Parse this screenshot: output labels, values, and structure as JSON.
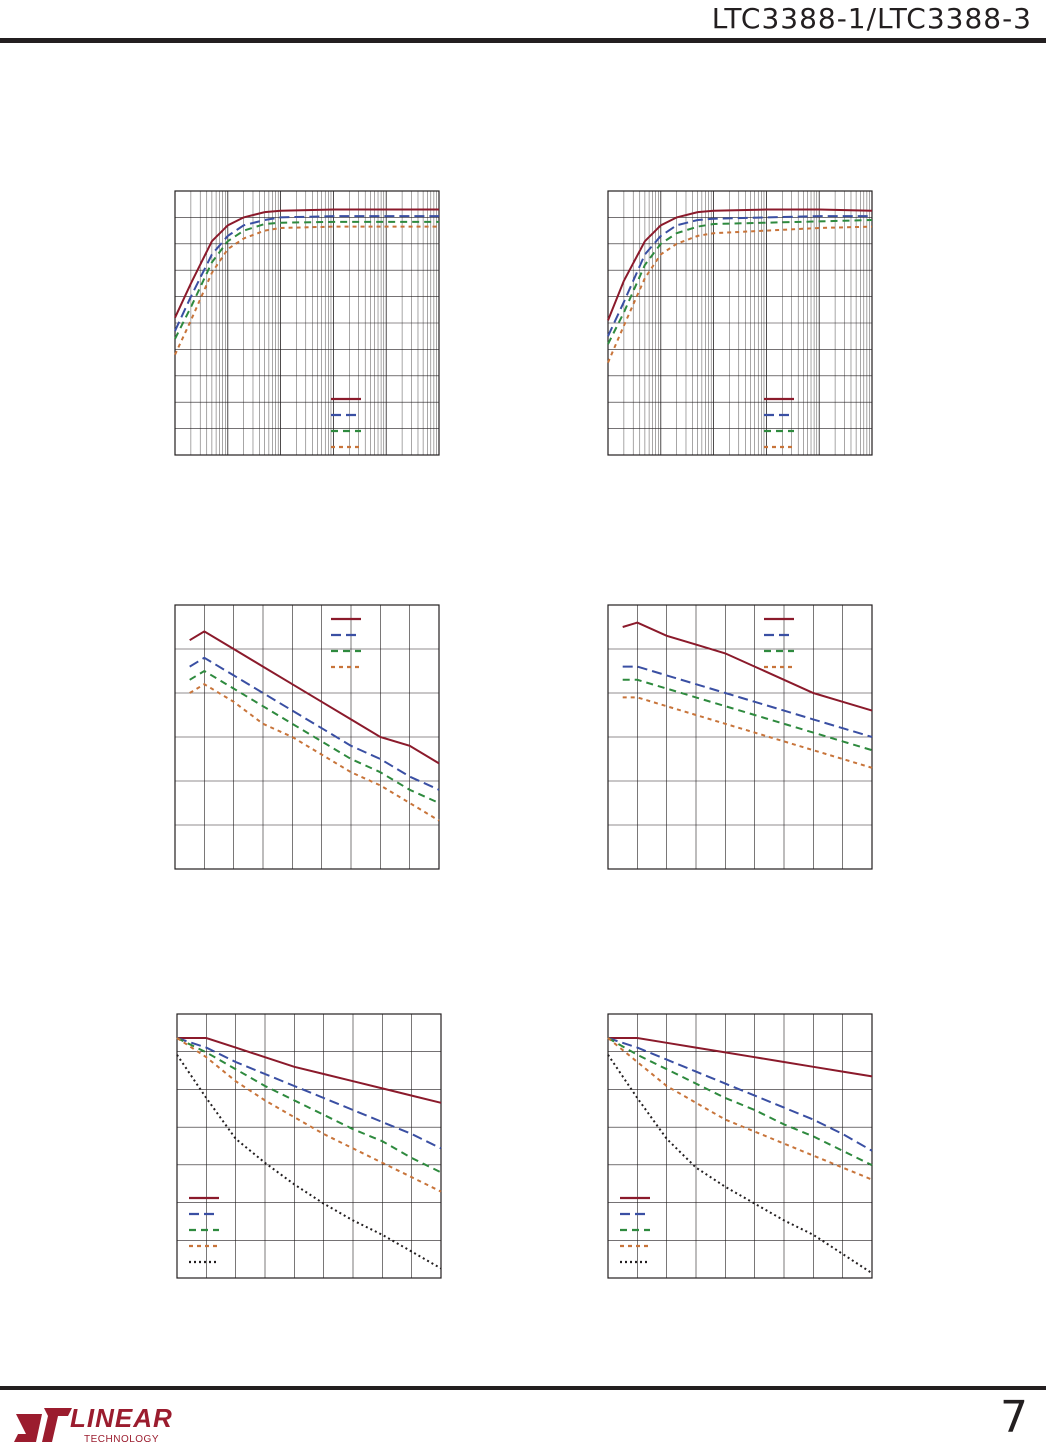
{
  "header": {
    "title": "LTC3388-1/LTC3388-3"
  },
  "footer": {
    "page_number": "7",
    "logo_word": "LINEAR",
    "logo_sub": "TECHNOLOGY"
  },
  "colors": {
    "series1": "#8b1a2b",
    "series2": "#3a4fa3",
    "series3": "#2e8a3e",
    "series4": "#c8743a",
    "series5": "#231f20",
    "grid": "#231f20"
  },
  "chart_data": [
    {
      "type": "line",
      "scale": "log-x",
      "legend": "bottom-right",
      "series": [
        {
          "x": [
            0.001,
            0.002,
            0.005,
            0.01,
            0.02,
            0.05,
            0.1,
            1,
            10,
            100
          ],
          "values": [
            52,
            65,
            81,
            87,
            90,
            92,
            92.5,
            93,
            93,
            93
          ]
        },
        {
          "x": [
            0.001,
            0.002,
            0.005,
            0.01,
            0.02,
            0.05,
            0.1,
            1,
            10,
            100
          ],
          "values": [
            47,
            60,
            76,
            83,
            87,
            89,
            90,
            90.5,
            90.5,
            90.5
          ]
        },
        {
          "x": [
            0.001,
            0.002,
            0.005,
            0.01,
            0.02,
            0.05,
            0.1,
            1,
            10,
            100
          ],
          "values": [
            44,
            56,
            73,
            81,
            85,
            87.5,
            88,
            88.3,
            88.3,
            88.3
          ]
        },
        {
          "x": [
            0.001,
            0.002,
            0.005,
            0.01,
            0.02,
            0.05,
            0.1,
            1,
            10,
            100
          ],
          "values": [
            38,
            51,
            69,
            78,
            82,
            85,
            86,
            86.5,
            86.5,
            86.5
          ]
        }
      ]
    },
    {
      "type": "line",
      "scale": "log-x",
      "legend": "bottom-right",
      "series": [
        {
          "x": [
            0.001,
            0.002,
            0.005,
            0.01,
            0.02,
            0.05,
            0.1,
            1,
            10,
            100
          ],
          "values": [
            51,
            66,
            81,
            87,
            90,
            92,
            92.5,
            93,
            93,
            92.5
          ]
        },
        {
          "x": [
            0.001,
            0.002,
            0.005,
            0.01,
            0.02,
            0.05,
            0.1,
            1,
            10,
            100
          ],
          "values": [
            45,
            58,
            76,
            83,
            87,
            89,
            89.5,
            90,
            90.5,
            90.5
          ]
        },
        {
          "x": [
            0.001,
            0.002,
            0.005,
            0.01,
            0.02,
            0.05,
            0.1,
            1,
            10,
            100
          ],
          "values": [
            42,
            54,
            72,
            80,
            84,
            86.5,
            87.5,
            88,
            88.5,
            89
          ]
        },
        {
          "x": [
            0.001,
            0.002,
            0.005,
            0.01,
            0.02,
            0.05,
            0.1,
            1,
            10,
            100
          ],
          "values": [
            35,
            49,
            67,
            76,
            80,
            83,
            84,
            85,
            86,
            86.5
          ]
        }
      ]
    },
    {
      "type": "line",
      "legend": "top-right",
      "series": [
        {
          "x": [
            0.5,
            1,
            2,
            3,
            4,
            5,
            6,
            7,
            8,
            9
          ],
          "values": [
            4.2,
            4.4,
            4.0,
            3.6,
            3.2,
            2.8,
            2.4,
            2.0,
            1.8,
            1.4
          ]
        },
        {
          "x": [
            0.5,
            1,
            2,
            3,
            4,
            5,
            6,
            7,
            8,
            9
          ],
          "values": [
            3.6,
            3.8,
            3.4,
            3.0,
            2.6,
            2.2,
            1.8,
            1.5,
            1.1,
            0.8
          ]
        },
        {
          "x": [
            0.5,
            1,
            2,
            3,
            4,
            5,
            6,
            7,
            8,
            9
          ],
          "values": [
            3.3,
            3.5,
            3.1,
            2.7,
            2.3,
            1.9,
            1.5,
            1.2,
            0.8,
            0.5
          ]
        },
        {
          "x": [
            0.5,
            1,
            2,
            3,
            4,
            5,
            6,
            7,
            8,
            9
          ],
          "values": [
            3.0,
            3.2,
            2.8,
            2.3,
            2.0,
            1.6,
            1.2,
            0.9,
            0.5,
            0.1
          ]
        }
      ]
    },
    {
      "type": "line",
      "legend": "top-right",
      "series": [
        {
          "x": [
            0.5,
            1,
            2,
            3,
            4,
            5,
            6,
            7,
            8,
            9
          ],
          "values": [
            4.5,
            4.6,
            4.3,
            4.1,
            3.9,
            3.6,
            3.3,
            3.0,
            2.8,
            2.6
          ]
        },
        {
          "x": [
            0.5,
            1,
            2,
            3,
            4,
            5,
            6,
            7,
            8,
            9
          ],
          "values": [
            3.6,
            3.6,
            3.4,
            3.2,
            3.0,
            2.8,
            2.6,
            2.4,
            2.2,
            2.0
          ]
        },
        {
          "x": [
            0.5,
            1,
            2,
            3,
            4,
            5,
            6,
            7,
            8,
            9
          ],
          "values": [
            3.3,
            3.3,
            3.1,
            2.9,
            2.7,
            2.5,
            2.3,
            2.1,
            1.9,
            1.7
          ]
        },
        {
          "x": [
            0.5,
            1,
            2,
            3,
            4,
            5,
            6,
            7,
            8,
            9
          ],
          "values": [
            2.9,
            2.9,
            2.7,
            2.5,
            2.3,
            2.1,
            1.9,
            1.7,
            1.5,
            1.3
          ]
        }
      ]
    },
    {
      "type": "line",
      "legend": "bottom-left",
      "series": [
        {
          "x": [
            0,
            1,
            2,
            3,
            4,
            5,
            6,
            7,
            8,
            9
          ],
          "values": [
            10.0,
            10.0,
            9.6,
            9.2,
            8.8,
            8.5,
            8.2,
            7.9,
            7.6,
            7.3
          ]
        },
        {
          "x": [
            0,
            1,
            2,
            3,
            4,
            5,
            6,
            7,
            8,
            9
          ],
          "values": [
            10.0,
            9.6,
            9.0,
            8.5,
            8.0,
            7.5,
            7.0,
            6.5,
            6.0,
            5.4
          ]
        },
        {
          "x": [
            0,
            1,
            2,
            3,
            4,
            5,
            6,
            7,
            8,
            9
          ],
          "values": [
            10.0,
            9.4,
            8.7,
            8.0,
            7.4,
            6.8,
            6.2,
            5.7,
            5.0,
            4.4
          ]
        },
        {
          "x": [
            0,
            1,
            2,
            3,
            4,
            5,
            6,
            7,
            8,
            9
          ],
          "values": [
            10.0,
            9.2,
            8.2,
            7.4,
            6.7,
            6.0,
            5.4,
            4.8,
            4.2,
            3.6
          ]
        },
        {
          "x": [
            0,
            1,
            2,
            3,
            4,
            5,
            6,
            7,
            8,
            9
          ],
          "values": [
            9.3,
            7.5,
            5.8,
            4.8,
            3.9,
            3.1,
            2.4,
            1.8,
            1.1,
            0.4
          ]
        }
      ]
    },
    {
      "type": "line",
      "legend": "bottom-left",
      "series": [
        {
          "x": [
            0,
            1,
            2,
            3,
            4,
            5,
            6,
            7,
            8,
            9
          ],
          "values": [
            10.0,
            10.0,
            9.8,
            9.6,
            9.4,
            9.2,
            9.0,
            8.8,
            8.6,
            8.4
          ]
        },
        {
          "x": [
            0,
            1,
            2,
            3,
            4,
            5,
            6,
            7,
            8,
            9
          ],
          "values": [
            10.0,
            9.6,
            9.1,
            8.6,
            8.1,
            7.6,
            7.1,
            6.6,
            6.0,
            5.3
          ]
        },
        {
          "x": [
            0,
            1,
            2,
            3,
            4,
            5,
            6,
            7,
            8,
            9
          ],
          "values": [
            10.0,
            9.3,
            8.7,
            8.1,
            7.5,
            7.0,
            6.4,
            5.9,
            5.3,
            4.7
          ]
        },
        {
          "x": [
            0,
            1,
            2,
            3,
            4,
            5,
            6,
            7,
            8,
            9
          ],
          "values": [
            10.0,
            9.0,
            8.0,
            7.3,
            6.6,
            6.1,
            5.6,
            5.1,
            4.6,
            4.1
          ]
        },
        {
          "x": [
            0,
            1,
            2,
            3,
            4,
            5,
            6,
            7,
            8,
            9
          ],
          "values": [
            9.3,
            7.5,
            5.8,
            4.6,
            3.8,
            3.1,
            2.4,
            1.8,
            1.0,
            0.2
          ]
        }
      ]
    }
  ]
}
